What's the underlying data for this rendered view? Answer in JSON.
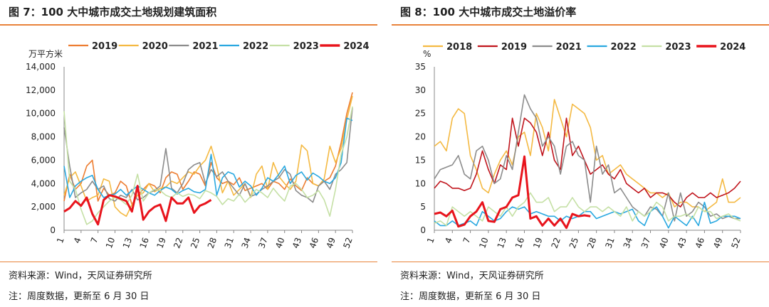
{
  "panels": [
    {
      "title": "图 7：100 大中城市成交土地规划建筑面积",
      "source": "资料来源：Wind，天风证券研究所",
      "note": "注：周度数据，更新至 6 月 30 日",
      "colors": {
        "2019": "#ed7d31",
        "2020": "#f4b942",
        "2021": "#8c8c8c",
        "2022": "#29a8e0",
        "2023": "#c5e0a5",
        "2024": "#e8141c"
      },
      "chart_data": {
        "type": "line",
        "ylabel": "万平方米",
        "ylim": [
          0,
          14000
        ],
        "yticks": [
          0,
          2000,
          4000,
          6000,
          8000,
          10000,
          12000,
          14000
        ],
        "ytick_labels": [
          "0",
          "2,000",
          "4,000",
          "6,000",
          "8,000",
          "10,000",
          "12,000",
          "14,000"
        ],
        "xlim": [
          1,
          52
        ],
        "xticks": [
          1,
          4,
          7,
          10,
          13,
          16,
          19,
          22,
          25,
          28,
          31,
          34,
          37,
          40,
          43,
          46,
          49,
          52
        ],
        "xtick_labels": [
          "1",
          "4",
          "7",
          "10",
          "13",
          "16",
          "19",
          "22",
          "25",
          "28",
          "31",
          "34",
          "37",
          "40",
          "43",
          "46",
          "49",
          "52"
        ],
        "legend_position": "top",
        "series": [
          {
            "name": "2019",
            "values": [
              2500,
              4800,
              3500,
              4000,
              5500,
              6000,
              2500,
              3600,
              3000,
              3200,
              4200,
              3800,
              2200,
              3000,
              3500,
              4000,
              3800,
              3200,
              4500,
              5000,
              4800,
              3500,
              4200,
              5000,
              4800,
              3800,
              5800,
              4500,
              4000,
              4200,
              3900,
              4500,
              3400,
              3600,
              3800,
              4000,
              3500,
              4200,
              4000,
              3500,
              4400,
              3800,
              3400,
              4500,
              4000,
              3800,
              4200,
              4500,
              5500,
              7500,
              10000,
              11800
            ]
          },
          {
            "name": "2020",
            "values": [
              3000,
              4500,
              5000,
              3800,
              2500,
              2800,
              3000,
              4400,
              4200,
              2000,
              1500,
              1200,
              2200,
              3000,
              3200,
              4000,
              3300,
              3600,
              3700,
              4200,
              4000,
              4500,
              5000,
              4800,
              5500,
              6000,
              7200,
              5500,
              3200,
              4200,
              3000,
              3500,
              4000,
              2800,
              4800,
              5500,
              3500,
              5800,
              4600,
              4000,
              3500,
              4200,
              7300,
              6800,
              4000,
              3800,
              4400,
              7200,
              5800,
              7000,
              9500,
              11500
            ]
          },
          {
            "name": "2021",
            "values": [
              8800,
              5500,
              2800,
              3200,
              3500,
              4200,
              3500,
              3800,
              2700,
              2500,
              3000,
              2800,
              3500,
              2600,
              2800,
              3200,
              3400,
              3800,
              7000,
              3600,
              3200,
              4000,
              5200,
              5600,
              5800,
              4000,
              5200,
              4600,
              5000,
              4200,
              3600,
              3000,
              4000,
              2900,
              3100,
              3500,
              3800,
              4200,
              4500,
              5200,
              4800,
              3400,
              3000,
              2800,
              2400,
              3800,
              4200,
              3500,
              4800,
              5200,
              5800,
              10500
            ]
          },
          {
            "name": "2022",
            "values": [
              5500,
              2800,
              3800,
              4200,
              4500,
              4700,
              3500,
              2800,
              3000,
              3100,
              3500,
              3000,
              3400,
              3800,
              3500,
              3200,
              3000,
              3400,
              3700,
              3500,
              3100,
              3400,
              3600,
              3300,
              3200,
              3500,
              6500,
              3000,
              4500,
              5000,
              4800,
              3700,
              4200,
              3800,
              3000,
              3600,
              4500,
              4200,
              4800,
              5500,
              4000,
              4700,
              5000,
              4300,
              4900,
              4600,
              4200,
              4000,
              4500,
              5800,
              9600,
              9400
            ]
          },
          {
            "name": "2023",
            "values": [
              10200,
              4200,
              3500,
              1800,
              500,
              800,
              1500,
              2000,
              2500,
              2800,
              2600,
              2200,
              3000,
              4800,
              2500,
              3200,
              3500,
              3400,
              3000,
              2800,
              3200,
              2900,
              3100,
              3000,
              2700,
              3400,
              3200,
              2900,
              2200,
              2700,
              2500,
              3100,
              2400,
              2900,
              3500,
              3200,
              2800,
              3600,
              3000,
              2500,
              3800,
              4000,
              3500,
              2800,
              3000,
              3400,
              2600,
              1200,
              3500,
              6500,
              8000,
              10600
            ]
          },
          {
            "name": "2024",
            "values": [
              1600,
              1900,
              2500,
              2100,
              2800,
              1400,
              500,
              2600,
              3000,
              2900,
              2700,
              2500,
              1600,
              3800,
              900,
              1600,
              2000,
              2200,
              800,
              2800,
              2300,
              2300,
              2800,
              1500,
              2100,
              2300,
              2600
            ]
          }
        ]
      }
    },
    {
      "title": "图 8：100 大中城市成交土地溢价率",
      "source": "资料来源：Wind，天风证券研究所",
      "note": "注：周度数据，更新至 6 月 30 日",
      "colors": {
        "2018": "#f4b942",
        "2019": "#c0141c",
        "2021": "#8c8c8c",
        "2022": "#29a8e0",
        "2023": "#c5e0a5",
        "2024": "#e8141c"
      },
      "chart_data": {
        "type": "line",
        "ylabel": "%",
        "ylim": [
          0,
          35
        ],
        "yticks": [
          0,
          5,
          10,
          15,
          20,
          25,
          30,
          35
        ],
        "ytick_labels": [
          "0",
          "5",
          "10",
          "15",
          "20",
          "25",
          "30",
          "35"
        ],
        "xlim": [
          1,
          52
        ],
        "xticks": [
          1,
          4,
          7,
          10,
          13,
          16,
          19,
          22,
          25,
          28,
          31,
          34,
          37,
          40,
          43,
          46,
          49,
          52
        ],
        "xtick_labels": [
          "1",
          "4",
          "7",
          "10",
          "13",
          "16",
          "19",
          "22",
          "25",
          "28",
          "31",
          "34",
          "37",
          "40",
          "43",
          "46",
          "49",
          "52"
        ],
        "legend_position": "top",
        "series": [
          {
            "name": "2018",
            "values": [
              18,
              19,
              17,
              24,
              26,
              25,
              16,
              13,
              9,
              8,
              12,
              15,
              17,
              14,
              20,
              21,
              16,
              25,
              22,
              17,
              28,
              24,
              20,
              27,
              26,
              25,
              22,
              15,
              16,
              12,
              13,
              14,
              12,
              11,
              10,
              9,
              8,
              8,
              7,
              8,
              5,
              6,
              6,
              5,
              5,
              4,
              5,
              6,
              11,
              6,
              6,
              7
            ]
          },
          {
            "name": "2019",
            "values": [
              9,
              10.5,
              10,
              9,
              9,
              8.5,
              9,
              12,
              17,
              13,
              10,
              14,
              13,
              24,
              18,
              24,
              23,
              21,
              16,
              21,
              15,
              13,
              24,
              16,
              18,
              15,
              12,
              13,
              14,
              12,
              11,
              13,
              10,
              9,
              8,
              9,
              7,
              8,
              8,
              7.5,
              6,
              5,
              7,
              8,
              7,
              7,
              8,
              7,
              7.5,
              8,
              9,
              10.5
            ]
          },
          {
            "name": "2021",
            "values": [
              11,
              13,
              13.5,
              14,
              16,
              12,
              11,
              17,
              18,
              15,
              10,
              11,
              16,
              13,
              21,
              29,
              26,
              24,
              18,
              20,
              18,
              12,
              18,
              19,
              16,
              15,
              6,
              18,
              12,
              14,
              8,
              9,
              7,
              5,
              4,
              3,
              5,
              4.5,
              3,
              8,
              2,
              8,
              3,
              4,
              6,
              5,
              3,
              3.5,
              2.5,
              3,
              2.5,
              2.5
            ]
          },
          {
            "name": "2022",
            "values": [
              2,
              1,
              1,
              2,
              1,
              1.5,
              2,
              1,
              4,
              3,
              2,
              2.5,
              4,
              5,
              4.5,
              5,
              3.5,
              4,
              3.5,
              3,
              3,
              2,
              3,
              2.5,
              3,
              4,
              4,
              2.5,
              3,
              3.5,
              4,
              3.5,
              4,
              4.5,
              2,
              1,
              4,
              5,
              3,
              0.5,
              3,
              2,
              1,
              3,
              1,
              6,
              1.5,
              2,
              3,
              3,
              3,
              2.5
            ]
          },
          {
            "name": "2023",
            "values": [
              1.5,
              2,
              1,
              5,
              4,
              3,
              4,
              3,
              2,
              5,
              4,
              3,
              5,
              3,
              5,
              6,
              8,
              6,
              6,
              7,
              4,
              5,
              5,
              7,
              5,
              4,
              5,
              5,
              4,
              5,
              4,
              3,
              5,
              2,
              4,
              3,
              4,
              6,
              5,
              2,
              3,
              3,
              3.5,
              2.5,
              5,
              4,
              4,
              2.5,
              3,
              3.5,
              2.5,
              2
            ]
          },
          {
            "name": "2024",
            "values": [
              3.5,
              3.8,
              3,
              4.2,
              0.8,
              1.2,
              3,
              4,
              6,
              2,
              1.8,
              4.5,
              5,
              7,
              7.5,
              15.8,
              2.5,
              3,
              1,
              2.5,
              1,
              2.5,
              0.5,
              3.5,
              3,
              3.2,
              3
            ]
          }
        ]
      }
    }
  ]
}
